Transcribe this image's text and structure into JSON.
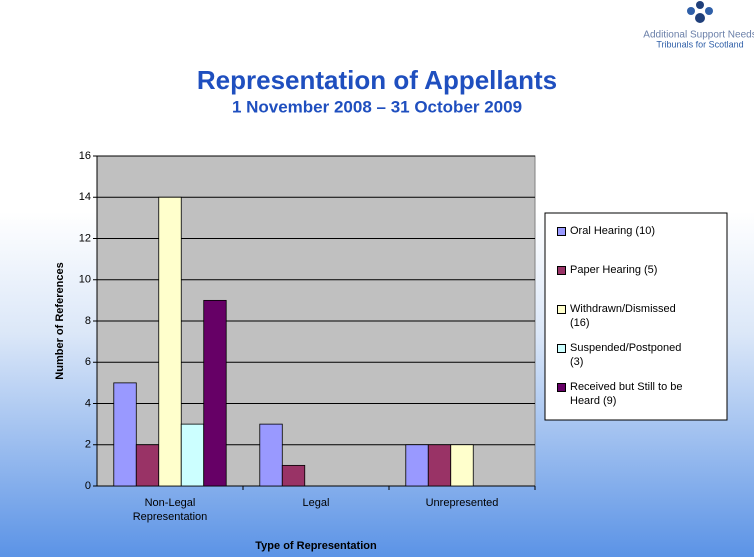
{
  "logo": {
    "line1": "Additional Support Needs",
    "line2": "Tribunals for Scotland"
  },
  "chart_data": {
    "type": "bar",
    "title": "Representation of Appellants",
    "subtitle": "1 November 2008 – 31 October 2009",
    "x_label": "Type of Representation",
    "y_label": "Number of References",
    "categories": [
      "Non-Legal Representation",
      "Legal",
      "Unrepresented"
    ],
    "series": [
      {
        "name": "Oral Hearing (10)",
        "color": "#9999ff",
        "values": [
          5,
          3,
          2
        ]
      },
      {
        "name": "Paper Hearing (5)",
        "color": "#993366",
        "values": [
          2,
          1,
          2
        ]
      },
      {
        "name": "Withdrawn/Dismissed (16)",
        "color": "#ffffcc",
        "values": [
          14,
          0,
          2
        ]
      },
      {
        "name": "Suspended/Postponed (3)",
        "color": "#ccffff",
        "values": [
          3,
          0,
          0
        ]
      },
      {
        "name": "Received but Still to be Heard (9)",
        "color": "#660066",
        "values": [
          9,
          0,
          0
        ]
      }
    ],
    "ylim": [
      0,
      16
    ],
    "yticks": [
      0,
      2,
      4,
      6,
      8,
      10,
      12,
      14,
      16
    ],
    "grid": true,
    "legend": "right"
  }
}
